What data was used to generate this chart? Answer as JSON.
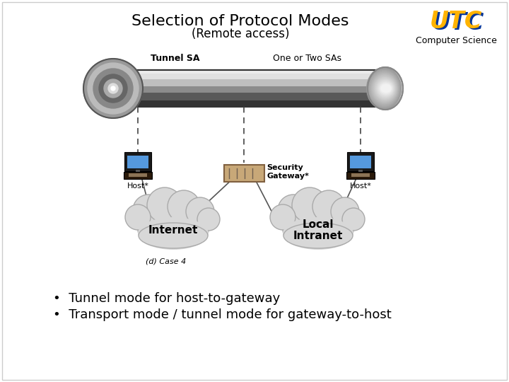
{
  "title": "Selection of Protocol Modes",
  "subtitle": "(Remote access)",
  "bullet1": "Tunnel mode for host-to-gateway",
  "bullet2": "Transport mode / tunnel mode for gateway-to-host",
  "bg_color": "#ffffff",
  "title_color": "#000000",
  "title_fontsize": 16,
  "subtitle_fontsize": 12,
  "bullet_fontsize": 13,
  "cs_text": "Computer Science",
  "tunnel_sa_label": "Tunnel SA",
  "one_two_sas_label": "One or Two SAs",
  "sec_gw_label1": "Security",
  "sec_gw_label2": "Gateway*",
  "host_left_label": "Host*",
  "host_right_label": "Host*",
  "internet_label": "Internet",
  "intranet_label1": "Local",
  "intranet_label2": "Intranet",
  "case_label": "(d) Case 4"
}
